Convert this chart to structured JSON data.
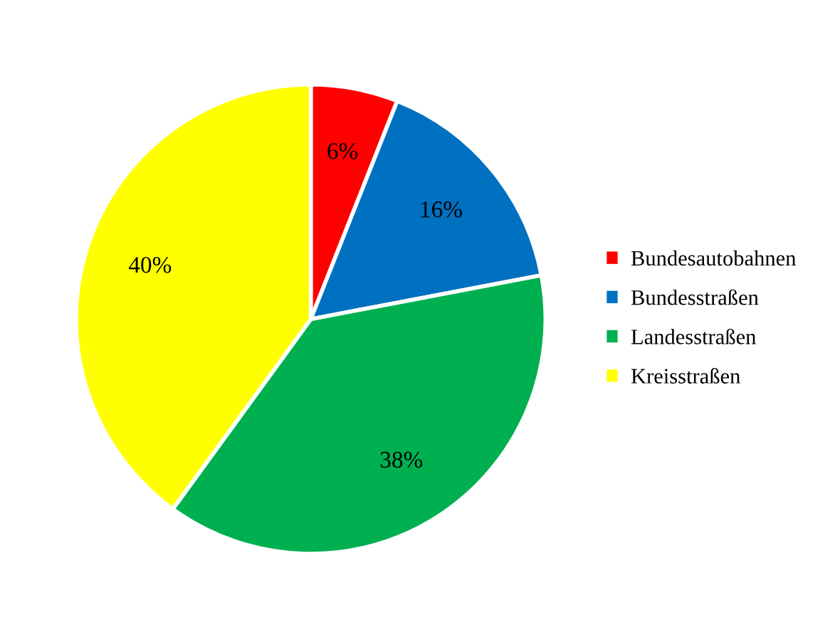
{
  "chart_data": {
    "type": "pie",
    "categories": [
      "Bundesautobahnen",
      "Bundesstraßen",
      "Landesstraßen",
      "Kreisstraßen"
    ],
    "values": [
      6,
      16,
      38,
      40
    ],
    "colors": [
      "#ff0000",
      "#0070c0",
      "#00b050",
      "#ffff00"
    ],
    "value_labels": [
      "6%",
      "16%",
      "38%",
      "40%"
    ],
    "legend": "right"
  }
}
